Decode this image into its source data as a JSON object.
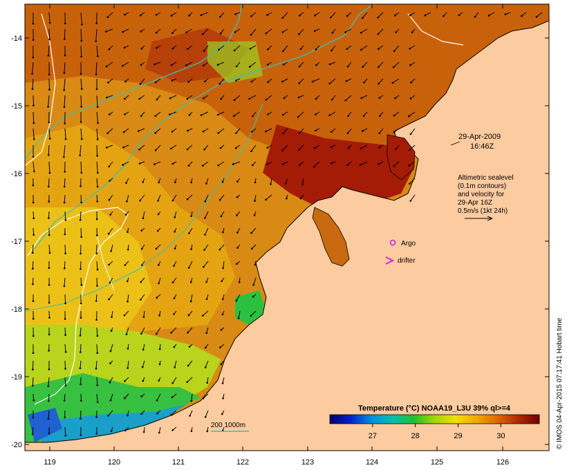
{
  "map": {
    "lon_ticks": [
      "119",
      "120",
      "121",
      "122",
      "123",
      "124",
      "125",
      "126"
    ],
    "lat_ticks": [
      "-14",
      "-15",
      "-16",
      "-17",
      "-18",
      "-19",
      "-20"
    ],
    "lon_range": [
      118.6,
      126.7
    ],
    "lat_range": [
      -20.1,
      -13.6
    ]
  },
  "annotations": {
    "date": "29-Apr-2009",
    "time": "16:46Z",
    "alt_line1": "Altimetric sealevel",
    "alt_line2": "(0.1m contours)",
    "alt_line3": "and velocity for",
    "alt_line4": "29-Apr 16Z",
    "alt_line5": "0.5m/s (1kt 24h)",
    "argo_label": "Argo",
    "drifter_label": "drifter",
    "depth_label": "200  1000m"
  },
  "colorbar": {
    "title": "Temperature (°C) NOAA19_L3U 39% ql>=4",
    "tick_labels": [
      "27",
      "28",
      "29",
      "30"
    ],
    "tick_values": [
      27,
      28,
      29,
      30
    ],
    "range": [
      26.0,
      30.9
    ]
  },
  "credit": "© IMOS 04-Apr-2015 07:17:41 Hobart time",
  "colors": {
    "land": "#fdcba0",
    "contour": "#ffffff",
    "isobath": "#3dbfb3",
    "argo": "#d020d0",
    "drifter": "#e020e0"
  }
}
